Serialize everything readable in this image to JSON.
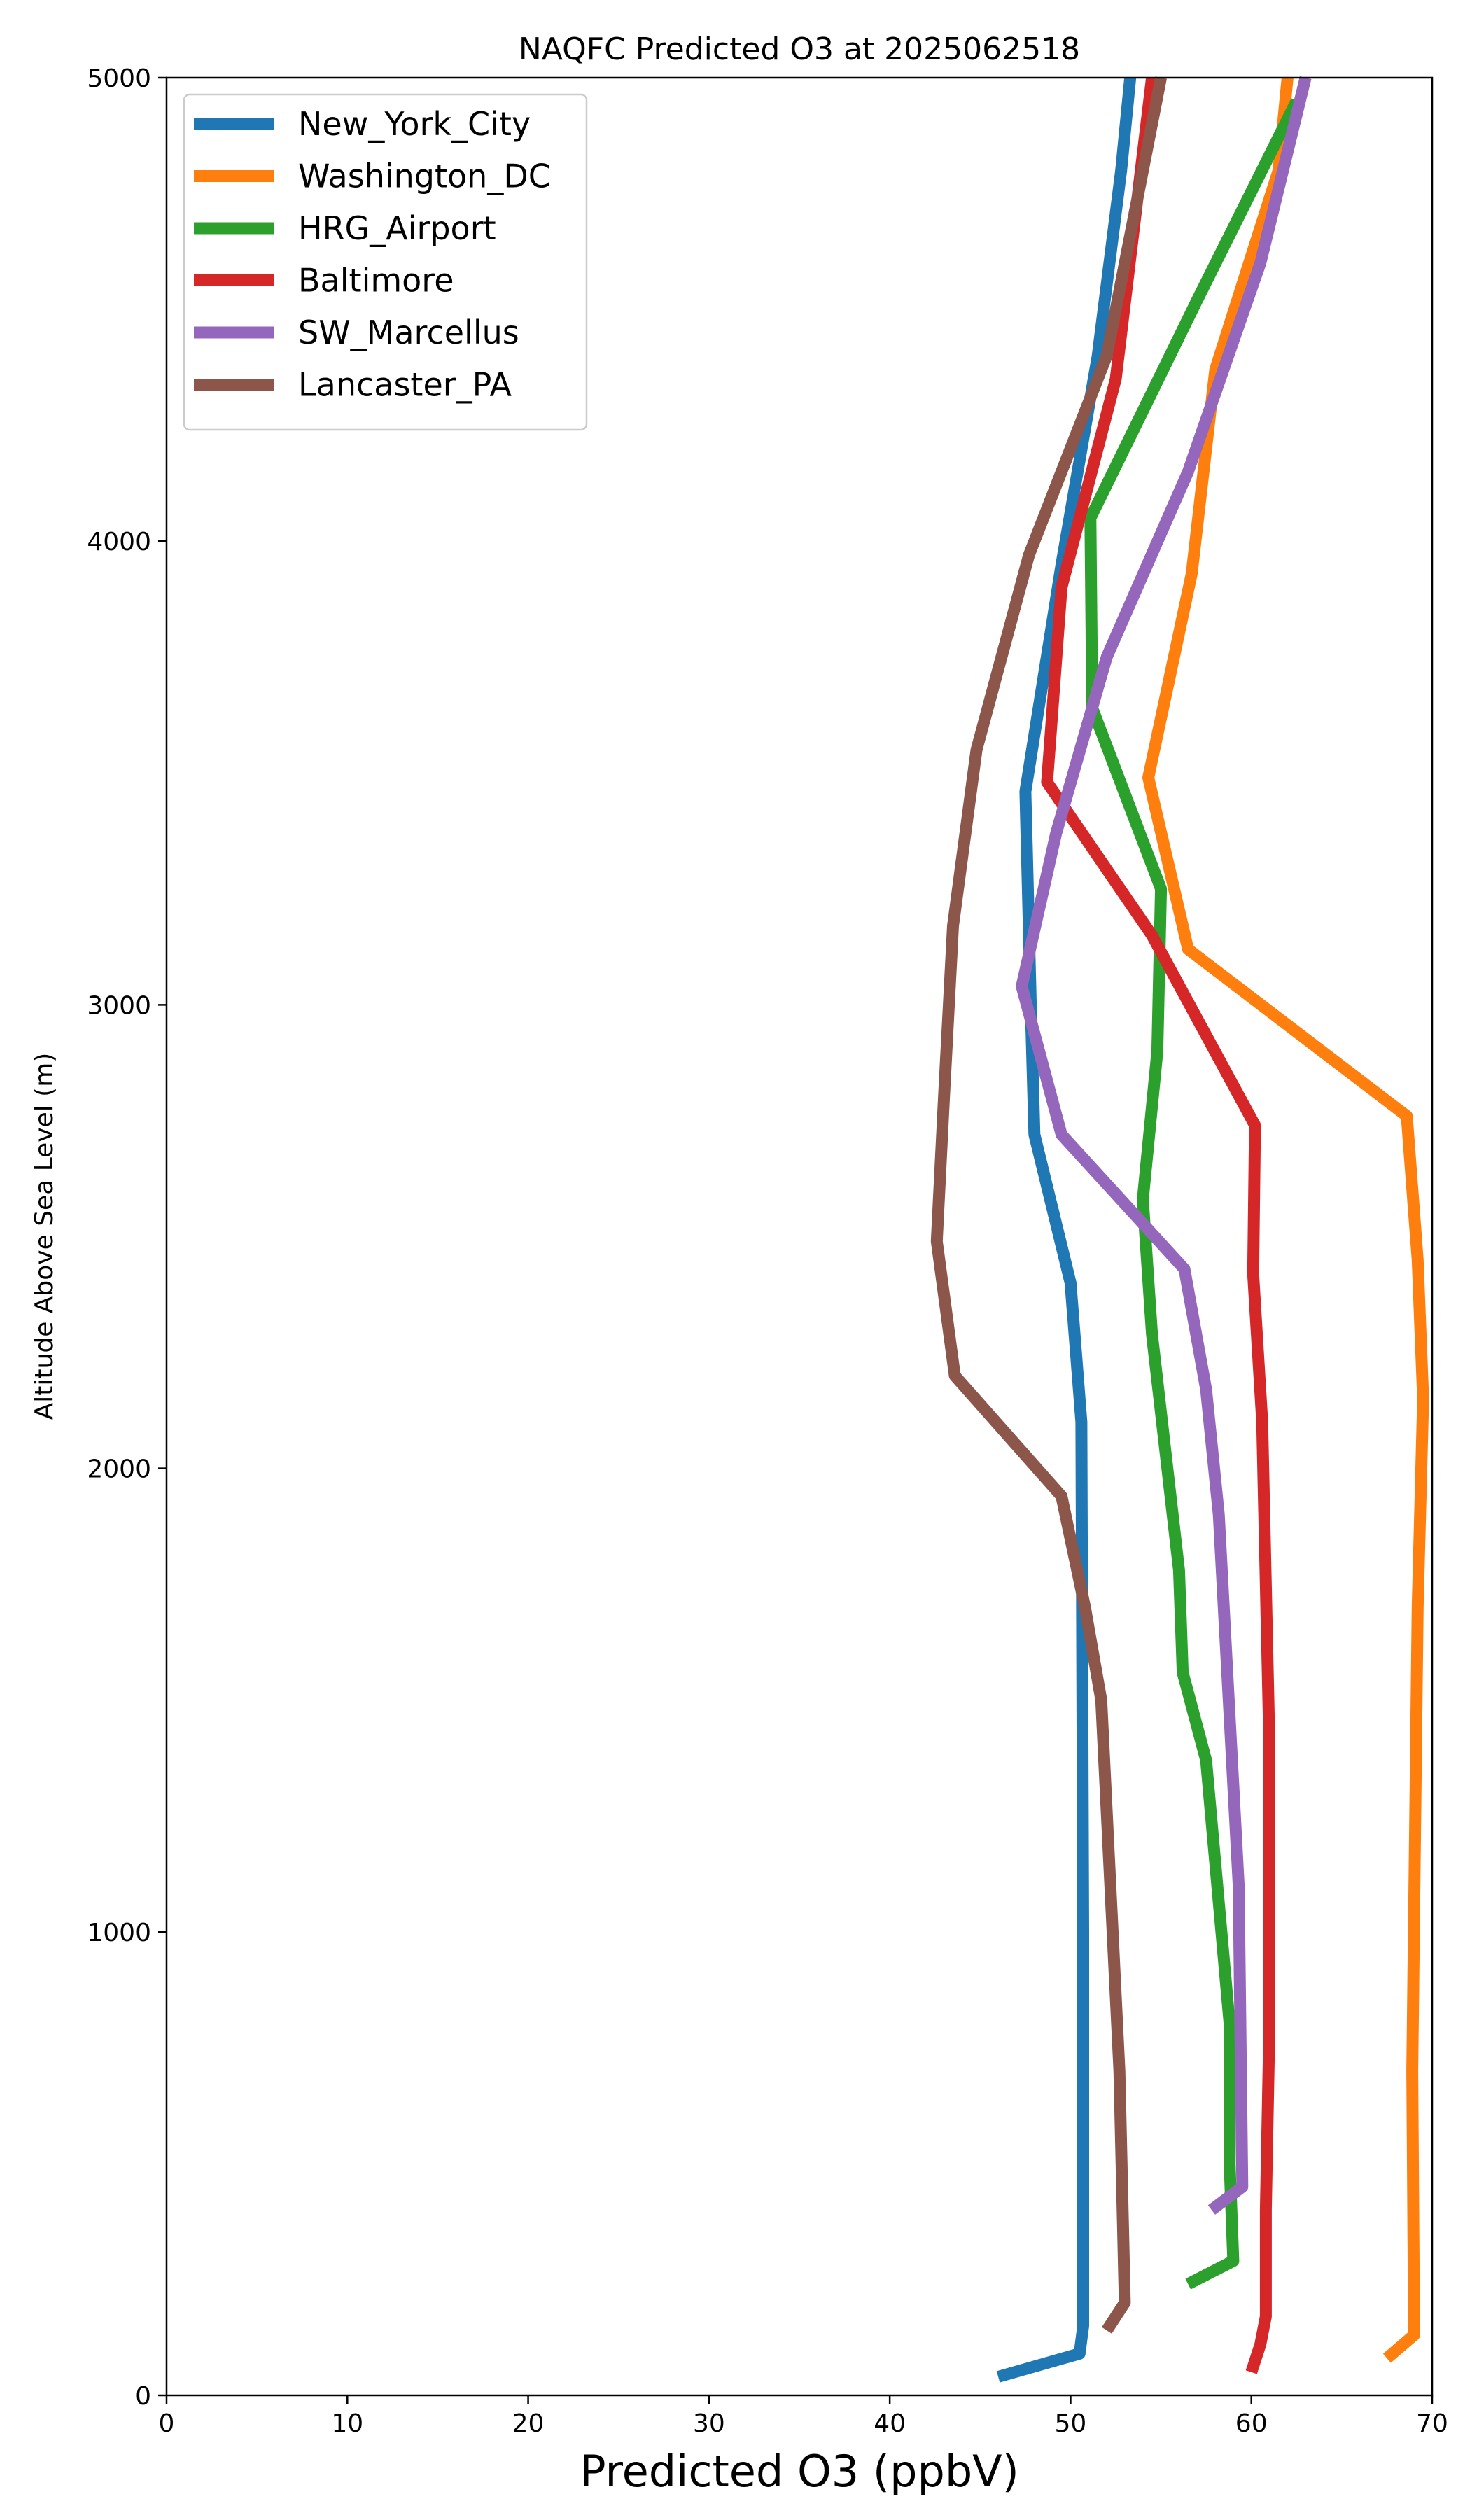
{
  "chart_data": {
    "type": "line",
    "title": "NAQFC Predicted O3 at 2025062518",
    "xlabel": "Predicted O3 (ppbV)",
    "ylabel": "Altitude Above Sea Level (m)",
    "xlim": [
      0,
      70
    ],
    "ylim": [
      0,
      5000
    ],
    "xticks": [
      0,
      10,
      20,
      30,
      40,
      50,
      60,
      70
    ],
    "yticks": [
      0,
      1000,
      2000,
      3000,
      4000,
      5000
    ],
    "legend_position": "upper-left",
    "grid": false,
    "series": [
      {
        "name": "New_York_City",
        "color": "#1f77b4",
        "points": [
          [
            46.0,
            40
          ],
          [
            50.5,
            90
          ],
          [
            50.7,
            150
          ],
          [
            50.7,
            1000
          ],
          [
            50.6,
            2100
          ],
          [
            50.0,
            2400
          ],
          [
            48.0,
            2720
          ],
          [
            47.8,
            3000
          ],
          [
            47.5,
            3460
          ],
          [
            49.5,
            3950
          ],
          [
            51.5,
            4400
          ],
          [
            52.8,
            4800
          ],
          [
            53.3,
            5000
          ]
        ]
      },
      {
        "name": "Washington_DC",
        "color": "#ff7f0e",
        "points": [
          [
            67.5,
            80
          ],
          [
            69.0,
            130
          ],
          [
            68.9,
            700
          ],
          [
            69.2,
            1700
          ],
          [
            69.5,
            2150
          ],
          [
            69.2,
            2450
          ],
          [
            68.6,
            2760
          ],
          [
            56.5,
            3120
          ],
          [
            54.3,
            3490
          ],
          [
            56.7,
            3930
          ],
          [
            58.0,
            4370
          ],
          [
            61.5,
            4800
          ],
          [
            62.0,
            5000
          ]
        ]
      },
      {
        "name": "HRG_Airport",
        "color": "#2ca02c",
        "points": [
          [
            56.5,
            240
          ],
          [
            59.0,
            290
          ],
          [
            58.8,
            500
          ],
          [
            58.8,
            800
          ],
          [
            57.5,
            1370
          ],
          [
            56.2,
            1560
          ],
          [
            56.0,
            1780
          ],
          [
            54.5,
            2290
          ],
          [
            54.0,
            2580
          ],
          [
            54.8,
            2900
          ],
          [
            55.0,
            3250
          ],
          [
            51.2,
            3640
          ],
          [
            51.1,
            4050
          ],
          [
            57.0,
            4520
          ],
          [
            62.5,
            4950
          ]
        ]
      },
      {
        "name": "Baltimore",
        "color": "#d62728",
        "points": [
          [
            60.0,
            50
          ],
          [
            60.5,
            110
          ],
          [
            60.8,
            170
          ],
          [
            60.8,
            400
          ],
          [
            61.0,
            800
          ],
          [
            61.0,
            1400
          ],
          [
            60.6,
            2100
          ],
          [
            60.1,
            2420
          ],
          [
            60.2,
            2740
          ],
          [
            54.5,
            3150
          ],
          [
            48.7,
            3480
          ],
          [
            49.5,
            3900
          ],
          [
            52.5,
            4350
          ],
          [
            54.5,
            5000
          ]
        ]
      },
      {
        "name": "SW_Marcellus",
        "color": "#9467bd",
        "points": [
          [
            57.8,
            400
          ],
          [
            59.5,
            450
          ],
          [
            59.3,
            1100
          ],
          [
            58.2,
            1900
          ],
          [
            57.5,
            2170
          ],
          [
            56.3,
            2430
          ],
          [
            49.5,
            2720
          ],
          [
            47.3,
            3040
          ],
          [
            49.2,
            3370
          ],
          [
            52.0,
            3750
          ],
          [
            56.5,
            4150
          ],
          [
            60.5,
            4600
          ],
          [
            63.0,
            5000
          ]
        ]
      },
      {
        "name": "Lancaster_PA",
        "color": "#8c564b",
        "points": [
          [
            52.0,
            140
          ],
          [
            53.0,
            200
          ],
          [
            52.7,
            700
          ],
          [
            51.7,
            1500
          ],
          [
            50.8,
            1700
          ],
          [
            49.5,
            1940
          ],
          [
            43.6,
            2200
          ],
          [
            42.6,
            2490
          ],
          [
            43.0,
            2800
          ],
          [
            43.5,
            3170
          ],
          [
            44.8,
            3550
          ],
          [
            47.7,
            3970
          ],
          [
            52.0,
            4400
          ],
          [
            55.0,
            5000
          ]
        ]
      }
    ]
  }
}
